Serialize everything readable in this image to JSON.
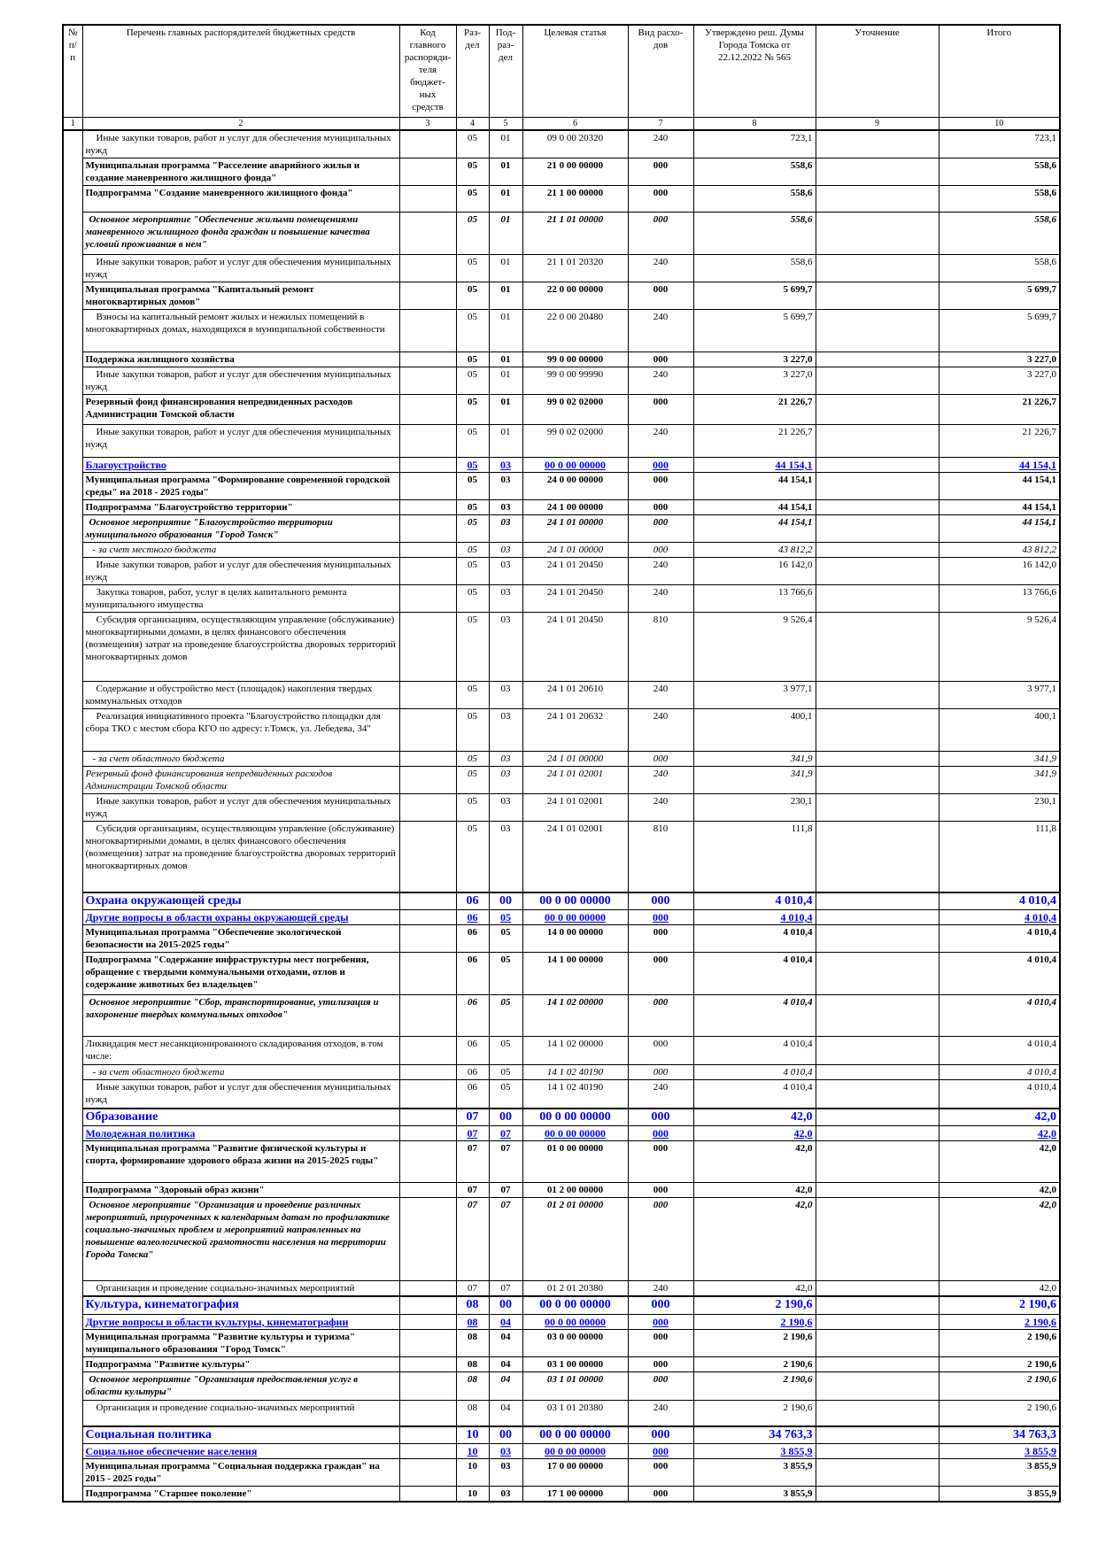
{
  "header": {
    "col1": "№ п/п",
    "col2": "Перечень главных распорядителей бюджетных средств",
    "col3": "Код главного распоряди-теля бюджет-ных средств",
    "col4": "Раз-дел",
    "col5": "Под-раз-дел",
    "col6": "Целевая статья",
    "col7": "Вид расхо-дов",
    "col8": "Утверждено реш. Думы Города Томска от 22.12.2022 № 565",
    "col9": "Уточнение",
    "col10": "Итого"
  },
  "column_numbers": [
    "1",
    "2",
    "3",
    "4",
    "5",
    "6",
    "7",
    "8",
    "9",
    "10"
  ],
  "colors": {
    "section_heading": "#0000ff"
  },
  "rows": [
    {
      "style": "n",
      "name": "Иные закупки товаров, работ и услуг для обеспечения муниципальных нужд",
      "rz": "05",
      "pr": "01",
      "cs": "09 0 00 20320",
      "vr": "240",
      "approved": "723,1",
      "total": "723,1"
    },
    {
      "style": "b",
      "name": "Муниципальная программа \"Расселение аварийного жилья и создание маневренного жилищного фонда\"",
      "rz": "05",
      "pr": "01",
      "cs": "21 0 00 00000",
      "vr": "000",
      "approved": "558,6",
      "total": "558,6"
    },
    {
      "style": "b",
      "name": "Подпрограмма \"Создание маневренного жилищного фонда\"",
      "rz": "05",
      "pr": "01",
      "cs": "21 1 00 00000",
      "vr": "000",
      "approved": "558,6",
      "total": "558,6"
    },
    {
      "style": "i",
      "name": "Основное мероприятие \"Обеспечение жилыми помещениями маневренного жилищного фонда граждан и повышение качества условий проживания в нем\"",
      "rz": "05",
      "pr": "01",
      "cs": "21 1 01 00000",
      "vr": "000",
      "approved": "558,6",
      "total": "558,6"
    },
    {
      "style": "n",
      "name": "Иные закупки товаров, работ и услуг для обеспечения муниципальных нужд",
      "rz": "05",
      "pr": "01",
      "cs": "21 1 01 20320",
      "vr": "240",
      "approved": "558,6",
      "total": "558,6"
    },
    {
      "style": "b",
      "name": "Муниципальная программа \"Капитальный ремонт многоквартирных домов\"",
      "rz": "05",
      "pr": "01",
      "cs": "22 0 00 00000",
      "vr": "000",
      "approved": "5 699,7",
      "total": "5 699,7"
    },
    {
      "style": "n",
      "name": "Взносы на капитальный ремонт жилых и нежилых помещений в многоквартирных домах, находящихся в муниципальной собственности",
      "rz": "05",
      "pr": "01",
      "cs": "22 0 00 20480",
      "vr": "240",
      "approved": "5 699,7",
      "total": "5 699,7"
    },
    {
      "style": "b",
      "name": "Поддержка жилищного хозяйства",
      "rz": "05",
      "pr": "01",
      "cs": "99 0 00 00000",
      "vr": "000",
      "approved": "3 227,0",
      "total": "3 227,0"
    },
    {
      "style": "n",
      "name": "Иные закупки товаров, работ и услуг для обеспечения муниципальных нужд",
      "rz": "05",
      "pr": "01",
      "cs": "99 0 00 99990",
      "vr": "240",
      "approved": "3 227,0",
      "total": "3 227,0"
    },
    {
      "style": "b",
      "name": "Резервный фонд финансирования непредвиденных расходов Администрации Томской области",
      "rz": "05",
      "pr": "01",
      "cs": "99 0 02 02000",
      "vr": "000",
      "approved": "21 226,7",
      "total": "21 226,7"
    },
    {
      "style": "n",
      "name": "Иные закупки товаров, работ и услуг для обеспечения муниципальных нужд",
      "rz": "05",
      "pr": "01",
      "cs": "99 0 02 02000",
      "vr": "240",
      "approved": "21 226,7",
      "total": "21 226,7"
    },
    {
      "style": "h2",
      "name": "Благоустройство",
      "rz": "05",
      "pr": "03",
      "cs": "00 0 00 00000",
      "vr": "000",
      "approved": "44 154,1",
      "total": "44 154,1"
    },
    {
      "style": "b",
      "name": "Муниципальная программа \"Формирование современной городской среды\" на 2018 - 2025 годы\"",
      "rz": "05",
      "pr": "03",
      "cs": "24 0 00 00000",
      "vr": "000",
      "approved": "44 154,1",
      "total": "44 154,1"
    },
    {
      "style": "b",
      "name": "Подпрограмма \"Благоустройство территории\"",
      "rz": "05",
      "pr": "03",
      "cs": "24 1 00 00000",
      "vr": "000",
      "approved": "44 154,1",
      "total": "44 154,1"
    },
    {
      "style": "i",
      "name": "Основное мероприятие \"Благоустройство территории муниципального образования \"Город Томск\"",
      "rz": "05",
      "pr": "03",
      "cs": "24 1 01 00000",
      "vr": "000",
      "approved": "44 154,1",
      "total": "44 154,1"
    },
    {
      "style": "si",
      "name": "- за счет местного бюджета",
      "rz": "05",
      "pr": "03",
      "cs": "24 1 01 00000",
      "vr": "000",
      "approved": "43 812,2",
      "total": "43 812,2"
    },
    {
      "style": "n",
      "name": "Иные закупки товаров, работ и услуг для обеспечения муниципальных нужд",
      "rz": "05",
      "pr": "03",
      "cs": "24 1 01 20450",
      "vr": "240",
      "approved": "16 142,0",
      "total": "16 142,0"
    },
    {
      "style": "n",
      "name": "Закупка товаров, работ, услуг в целях капитального ремонта муниципального имущества",
      "rz": "05",
      "pr": "03",
      "cs": "24 1 01 20450",
      "vr": "240",
      "approved": "13 766,6",
      "total": "13 766,6"
    },
    {
      "style": "n",
      "name": "Субсидия организациям, осуществляющим управление (обслуживание) многоквартирными домами, в целях финансового обеспечения (возмещения) затрат на проведение благоустройства дворовых территорий многоквартирных домов",
      "rz": "05",
      "pr": "03",
      "cs": "24 1 01 20450",
      "vr": "810",
      "approved": "9 526,4",
      "total": "9 526,4"
    },
    {
      "style": "n",
      "name": "Содержание и обустройство мест (площадок) накопления твердых коммунальных отходов",
      "rz": "05",
      "pr": "03",
      "cs": "24 1 01 20610",
      "vr": "240",
      "approved": "3 977,1",
      "total": "3 977,1"
    },
    {
      "style": "n",
      "name": "Реализация инициативного проекта \"Благоустройство площадки для сбора ТКО с местом сбора КГО по адресу: г.Томск, ул. Лебедева, 34\"",
      "rz": "05",
      "pr": "03",
      "cs": "24 1 01 20632",
      "vr": "240",
      "approved": "400,1",
      "total": "400,1"
    },
    {
      "style": "si",
      "name": "- за счет областного бюджета",
      "rz": "05",
      "pr": "03",
      "cs": "24 1 01 00000",
      "vr": "000",
      "approved": "341,9",
      "total": "341,9"
    },
    {
      "style": "si2",
      "name": "Резервный фонд финансирования непредвиденных расходов Администрации Томской области",
      "rz": "05",
      "pr": "03",
      "cs": "24 1 01 02001",
      "vr": "240",
      "approved": "341,9",
      "total": "341,9"
    },
    {
      "style": "n",
      "name": "Иные закупки товаров, работ и услуг для обеспечения муниципальных нужд",
      "rz": "05",
      "pr": "03",
      "cs": "24 1 01 02001",
      "vr": "240",
      "approved": "230,1",
      "total": "230,1"
    },
    {
      "style": "n",
      "name": "Субсидия организациям, осуществляющим управление (обслуживание) многоквартирными домами, в целях финансового обеспечения (возмещения) затрат на проведение благоустройства дворовых территорий многоквартирных домов",
      "rz": "05",
      "pr": "03",
      "cs": "24 1 01 02001",
      "vr": "810",
      "approved": "111,8",
      "total": "111,8"
    },
    {
      "style": "h1",
      "name": "Охрана окружающей среды",
      "rz": "06",
      "pr": "00",
      "cs": "00 0 00 00000",
      "vr": "000",
      "approved": "4 010,4",
      "total": "4 010,4"
    },
    {
      "style": "h2",
      "name": "Другие вопросы в области охраны окружающей среды",
      "rz": "06",
      "pr": "05",
      "cs": "00 0 00 00000",
      "vr": "000",
      "approved": "4 010,4",
      "total": "4 010,4"
    },
    {
      "style": "b",
      "name": "Муниципальная программа \"Обеспечение экологической безопасности на 2015-2025 годы\"",
      "rz": "06",
      "pr": "05",
      "cs": "14 0 00 00000",
      "vr": "000",
      "approved": "4 010,4",
      "total": "4 010,4"
    },
    {
      "style": "b",
      "name": "Подпрограмма \"Содержание инфраструктуры мест погребения, обращение с твердыми коммунальными отходами, отлов и содержание животных без владельцев\"",
      "rz": "06",
      "pr": "05",
      "cs": "14 1 00 00000",
      "vr": "000",
      "approved": "4 010,4",
      "total": "4 010,4"
    },
    {
      "style": "i",
      "name": "Основное мероприятие \"Сбор, транспортирование, утилизация и захоронение твердых коммунальных отходов\"",
      "rz": "06",
      "pr": "05",
      "cs": "14 1 02 00000",
      "vr": "000",
      "approved": "4 010,4",
      "total": "4 010,4"
    },
    {
      "style": "n0",
      "name": "Ликвидация мест несанкционированного складирования отходов, в том числе:",
      "rz": "06",
      "pr": "05",
      "cs": "14 1 02 00000",
      "vr": "000",
      "approved": "4 010,4",
      "total": "4 010,4"
    },
    {
      "style": "si3",
      "name": "- за счет областного бюджета",
      "rz": "06",
      "pr": "05",
      "cs": "14 1 02 40190",
      "vr": "000",
      "approved": "4 010,4",
      "total": "4 010,4"
    },
    {
      "style": "n",
      "name": "Иные закупки товаров, работ и услуг для обеспечения муниципальных нужд",
      "rz": "06",
      "pr": "05",
      "cs": "14 1 02 40190",
      "vr": "240",
      "approved": "4 010,4",
      "total": "4 010,4"
    },
    {
      "style": "h1",
      "name": "Образование",
      "rz": "07",
      "pr": "00",
      "cs": "00 0 00 00000",
      "vr": "000",
      "approved": "42,0",
      "total": "42,0"
    },
    {
      "style": "h2",
      "name": "Молодежная политика",
      "rz": "07",
      "pr": "07",
      "cs": "00 0 00 00000",
      "vr": "000",
      "approved": "42,0",
      "total": "42,0"
    },
    {
      "style": "b",
      "name": "Муниципальная программа \"Развитие физической культуры и спорта, формирование здорового образа жизни на 2015-2025 годы\"",
      "rz": "07",
      "pr": "07",
      "cs": "01 0 00 00000",
      "vr": "000",
      "approved": "42,0",
      "total": "42,0"
    },
    {
      "style": "b",
      "name": "Подпрограмма \"Здоровый образ жизни\"",
      "rz": "07",
      "pr": "07",
      "cs": "01 2 00 00000",
      "vr": "000",
      "approved": "42,0",
      "total": "42,0"
    },
    {
      "style": "i",
      "name": "Основное мероприятие \"Организация и проведение различных мероприятий, приуроченных к календарным датам по профилактике социально-значимых проблем и мероприятий направленных на повышение валеологической грамотности населения на территории Города Томска\"",
      "rz": "07",
      "pr": "07",
      "cs": "01 2 01 00000",
      "vr": "000",
      "approved": "42,0",
      "total": "42,0"
    },
    {
      "style": "n",
      "name": "Организация и проведение социально-значимых мероприятий",
      "rz": "07",
      "pr": "07",
      "cs": "01 2 01 20380",
      "vr": "240",
      "approved": "42,0",
      "total": "42,0"
    },
    {
      "style": "h1",
      "name": "Культура, кинематография",
      "rz": "08",
      "pr": "00",
      "cs": "00 0 00 00000",
      "vr": "000",
      "approved": "2 190,6",
      "total": "2 190,6"
    },
    {
      "style": "h2",
      "name": "Другие вопросы в области культуры, кинематографии",
      "rz": "08",
      "pr": "04",
      "cs": "00 0 00 00000",
      "vr": "000",
      "approved": "2 190,6",
      "total": "2 190,6"
    },
    {
      "style": "b",
      "name": "Муниципальная программа \"Развитие культуры и туризма\" муниципального образования \"Город Томск\"",
      "rz": "08",
      "pr": "04",
      "cs": "03 0 00 00000",
      "vr": "000",
      "approved": "2 190,6",
      "total": "2 190,6"
    },
    {
      "style": "b",
      "name": "Подпрограмма \"Развитие культуры\"",
      "rz": "08",
      "pr": "04",
      "cs": "03 1 00 00000",
      "vr": "000",
      "approved": "2 190,6",
      "total": "2 190,6"
    },
    {
      "style": "i",
      "name": "Основное мероприятие \"Организация предоставления услуг в области культуры\"",
      "rz": "08",
      "pr": "04",
      "cs": "03 1 01 00000",
      "vr": "000",
      "approved": "2 190,6",
      "total": "2 190,6"
    },
    {
      "style": "n",
      "name": "Организация и проведение социально-значимых мероприятий",
      "rz": "08",
      "pr": "04",
      "cs": "03 1 01 20380",
      "vr": "240",
      "approved": "2 190,6",
      "total": "2 190,6"
    },
    {
      "style": "h1",
      "name": "Социальная политика",
      "rz": "10",
      "pr": "00",
      "cs": "00 0 00 00000",
      "vr": "000",
      "approved": "34 763,3",
      "total": "34 763,3"
    },
    {
      "style": "h2",
      "name": "Социальное обеспечение населения",
      "rz": "10",
      "pr": "03",
      "cs": "00 0 00 00000",
      "vr": "000",
      "approved": "3 855,9",
      "total": "3 855,9"
    },
    {
      "style": "b",
      "name": "Муниципальная программа \"Социальная поддержка граждан\" на 2015 - 2025 годы\"",
      "rz": "10",
      "pr": "03",
      "cs": "17 0 00 00000",
      "vr": "000",
      "approved": "3 855,9",
      "total": "3 855,9"
    },
    {
      "style": "b",
      "name": "Подпрограмма \"Старшее поколение\"",
      "rz": "10",
      "pr": "03",
      "cs": "17 1 00 00000",
      "vr": "000",
      "approved": "3 855,9",
      "total": "3 855,9"
    }
  ]
}
